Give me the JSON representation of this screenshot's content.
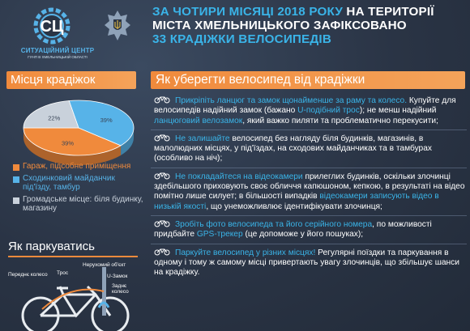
{
  "logo": {
    "title": "СИТУАЦІЙНИЙ ЦЕНТР",
    "subtitle": "ГУНП В ХМЕЛЬНИЦЬКІЙ ОБЛАСТІ"
  },
  "headline": {
    "part1": "ЗА ЧОТИРИ МІСЯЦІ 2018 РОКУ",
    "part2": " НА ТЕРИТОРІЇ",
    "part3": "МІСТА ХМЕЛЬНИЦЬКОГО ЗАФІКСОВАНО",
    "part4": "33 КРАДІЖКИ ВЕЛОСИПЕДІВ"
  },
  "left": {
    "title": "Місця крадіжок",
    "legend": [
      {
        "label": "Гараж, підсобне приміщення",
        "color": "#f08a3c"
      },
      {
        "label": "Сходинковий майданчик під'їзду, тамбур",
        "color": "#57b3e8"
      },
      {
        "label": "Громадське місце: біля будинку, магазину",
        "color": "#c9d1db"
      }
    ],
    "park_title": "Як паркуватись",
    "bike_labels": {
      "front": "Переднє колесо",
      "chain": "Трос",
      "fixed": "Нерухомий об'єкт",
      "ulock": "U-Замок",
      "rear": "Заднє колесо"
    }
  },
  "chart_data": {
    "type": "pie",
    "categories": [
      "Гараж, підсобне приміщення",
      "Сходинковий майданчик під'їзду, тамбур",
      "Громадське місце: біля будинку, магазину"
    ],
    "values": [
      39,
      39,
      22
    ],
    "value_labels": [
      "39%",
      "39%",
      "22%"
    ],
    "colors": [
      "#f08a3c",
      "#57b3e8",
      "#c9d1db"
    ]
  },
  "right": {
    "title": "Як уберегти велосипед від крадіжки",
    "tips": [
      {
        "hl": "Прикріпіть ланцюг та замок щонайменше за раму та колесо.",
        "t1": " Купуйте для велосипедів надійний замок (бажано ",
        "hl2": "U-подібний трос",
        "t2": "); не менш надійний ",
        "hl3": "ланцюговий велозамок",
        "t3": ", який важко пиляти та проблематично перекусити;"
      },
      {
        "hl": "Не залишайте",
        "t1": " велосипед без нагляду біля будинків, магазинів, в малолюдних місцях, у під'їздах, на сходових майданчиках та в тамбурах (особливо на ніч);"
      },
      {
        "hl": "Не покладайтеся на відеокамери",
        "t1": " прилеглих будинків, оскільки злочинці здебільшого приховують своє обличчя капюшоном, кепкою, в результаті на відео помітно лише силует; в більшості випадків ",
        "hl2": "відеокамери записують відео в низькій якості",
        "t2": ", що унеможливлює ідентифікувати злочинця;"
      },
      {
        "hl": "Зробіть фото велосипеда та його серійного номера",
        "t1": ", по можливості придбайте ",
        "hl2": "GPS-трекер",
        "t2": " (це допоможе у його пошуках);"
      },
      {
        "hl": "Паркуйте велосипед у різних місцях!",
        "t1": " Регулярні поїздки та паркування в одному і тому ж самому місці привертають увагу злочинців, що збільшує шанси на крадіжку."
      }
    ]
  }
}
